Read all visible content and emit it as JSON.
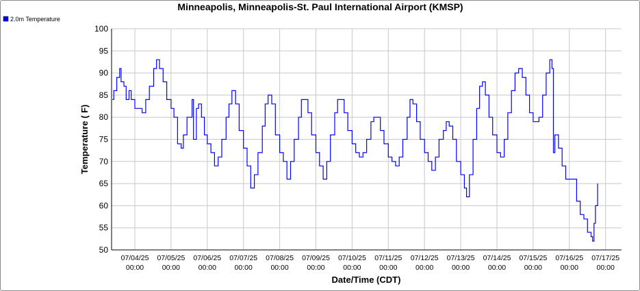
{
  "chart_data": {
    "type": "line",
    "title": "Minneapolis, Minneapolis-St. Paul International Airport (KMSP)",
    "xlabel": "Date/Time (CDT)",
    "ylabel": "Temperature ( F)",
    "ylim": [
      50,
      100
    ],
    "y_ticks": [
      "100",
      "95",
      "90",
      "85",
      "80",
      "75",
      "70",
      "65",
      "60",
      "55",
      "50"
    ],
    "x_tick_labels": [
      {
        "date": "07/04/25",
        "time": "00:00"
      },
      {
        "date": "07/05/25",
        "time": "00:00"
      },
      {
        "date": "07/06/25",
        "time": "00:00"
      },
      {
        "date": "07/07/25",
        "time": "00:00"
      },
      {
        "date": "07/08/25",
        "time": "00:00"
      },
      {
        "date": "07/09/25",
        "time": "00:00"
      },
      {
        "date": "07/10/25",
        "time": "00:00"
      },
      {
        "date": "07/11/25",
        "time": "00:00"
      },
      {
        "date": "07/12/25",
        "time": "00:00"
      },
      {
        "date": "07/13/25",
        "time": "00:00"
      },
      {
        "date": "07/14/25",
        "time": "00:00"
      },
      {
        "date": "07/15/25",
        "time": "00:00"
      },
      {
        "date": "07/16/25",
        "time": "00:00"
      },
      {
        "date": "07/17/25",
        "time": "00:00"
      }
    ],
    "grid": true,
    "legend_position": "top-left",
    "series": [
      {
        "name": "2.0m Temperature",
        "color": "#0000ff",
        "x_unit": "day offset from 07/04/25 00:00 CDT",
        "points": [
          [
            -0.62,
            84
          ],
          [
            -0.58,
            86
          ],
          [
            -0.5,
            89
          ],
          [
            -0.42,
            91
          ],
          [
            -0.38,
            88
          ],
          [
            -0.3,
            87
          ],
          [
            -0.24,
            84
          ],
          [
            -0.16,
            86
          ],
          [
            -0.1,
            84
          ],
          [
            0.0,
            82
          ],
          [
            0.1,
            82
          ],
          [
            0.2,
            81
          ],
          [
            0.3,
            84
          ],
          [
            0.4,
            87
          ],
          [
            0.52,
            91
          ],
          [
            0.6,
            93
          ],
          [
            0.68,
            91
          ],
          [
            0.78,
            88
          ],
          [
            0.88,
            84
          ],
          [
            1.0,
            82
          ],
          [
            1.08,
            80
          ],
          [
            1.18,
            74
          ],
          [
            1.28,
            73
          ],
          [
            1.34,
            76
          ],
          [
            1.44,
            80
          ],
          [
            1.58,
            84
          ],
          [
            1.62,
            75
          ],
          [
            1.7,
            82
          ],
          [
            1.76,
            83
          ],
          [
            1.84,
            80
          ],
          [
            1.92,
            76
          ],
          [
            2.0,
            74
          ],
          [
            2.1,
            72
          ],
          [
            2.2,
            69
          ],
          [
            2.3,
            71
          ],
          [
            2.4,
            75
          ],
          [
            2.52,
            80
          ],
          [
            2.6,
            83
          ],
          [
            2.68,
            86
          ],
          [
            2.78,
            83
          ],
          [
            2.88,
            77
          ],
          [
            3.0,
            73
          ],
          [
            3.1,
            69
          ],
          [
            3.2,
            64
          ],
          [
            3.3,
            67
          ],
          [
            3.4,
            72
          ],
          [
            3.52,
            78
          ],
          [
            3.6,
            83
          ],
          [
            3.68,
            85
          ],
          [
            3.78,
            83
          ],
          [
            3.88,
            76
          ],
          [
            4.0,
            72
          ],
          [
            4.1,
            70
          ],
          [
            4.2,
            66
          ],
          [
            4.3,
            70
          ],
          [
            4.4,
            75
          ],
          [
            4.52,
            80
          ],
          [
            4.6,
            84
          ],
          [
            4.68,
            84
          ],
          [
            4.78,
            81
          ],
          [
            4.88,
            76
          ],
          [
            5.0,
            72
          ],
          [
            5.1,
            69
          ],
          [
            5.2,
            66
          ],
          [
            5.3,
            70
          ],
          [
            5.4,
            76
          ],
          [
            5.52,
            81
          ],
          [
            5.6,
            84
          ],
          [
            5.68,
            84
          ],
          [
            5.78,
            81
          ],
          [
            5.88,
            77
          ],
          [
            6.0,
            74
          ],
          [
            6.1,
            72
          ],
          [
            6.2,
            71
          ],
          [
            6.3,
            72
          ],
          [
            6.4,
            75
          ],
          [
            6.52,
            79
          ],
          [
            6.6,
            80
          ],
          [
            6.68,
            80
          ],
          [
            6.78,
            77
          ],
          [
            6.88,
            74
          ],
          [
            7.0,
            71
          ],
          [
            7.1,
            70
          ],
          [
            7.2,
            69
          ],
          [
            7.3,
            71
          ],
          [
            7.4,
            75
          ],
          [
            7.52,
            80
          ],
          [
            7.6,
            84
          ],
          [
            7.68,
            83
          ],
          [
            7.78,
            79
          ],
          [
            7.88,
            75
          ],
          [
            8.0,
            72
          ],
          [
            8.1,
            70
          ],
          [
            8.2,
            68
          ],
          [
            8.3,
            71
          ],
          [
            8.4,
            75
          ],
          [
            8.52,
            77
          ],
          [
            8.6,
            79
          ],
          [
            8.68,
            78
          ],
          [
            8.78,
            75
          ],
          [
            8.88,
            70
          ],
          [
            9.0,
            67
          ],
          [
            9.1,
            64
          ],
          [
            9.16,
            62
          ],
          [
            9.24,
            67
          ],
          [
            9.34,
            75
          ],
          [
            9.44,
            82
          ],
          [
            9.52,
            87
          ],
          [
            9.6,
            88
          ],
          [
            9.68,
            85
          ],
          [
            9.78,
            80
          ],
          [
            9.88,
            76
          ],
          [
            10.0,
            72
          ],
          [
            10.1,
            71
          ],
          [
            10.2,
            75
          ],
          [
            10.3,
            81
          ],
          [
            10.4,
            86
          ],
          [
            10.5,
            90
          ],
          [
            10.6,
            91
          ],
          [
            10.7,
            89
          ],
          [
            10.8,
            85
          ],
          [
            10.9,
            81
          ],
          [
            11.0,
            79
          ],
          [
            11.1,
            79
          ],
          [
            11.16,
            80
          ],
          [
            11.26,
            85
          ],
          [
            11.36,
            90
          ],
          [
            11.46,
            93
          ],
          [
            11.52,
            91
          ],
          [
            11.56,
            72
          ],
          [
            11.6,
            76
          ],
          [
            11.7,
            73
          ],
          [
            11.8,
            69
          ],
          [
            11.9,
            66
          ],
          [
            12.0,
            66
          ],
          [
            12.1,
            66
          ],
          [
            12.2,
            61
          ],
          [
            12.3,
            58
          ],
          [
            12.4,
            57
          ],
          [
            12.5,
            54
          ],
          [
            12.6,
            53
          ],
          [
            12.64,
            52
          ],
          [
            12.68,
            56
          ],
          [
            12.72,
            60
          ],
          [
            12.78,
            65
          ]
        ]
      }
    ]
  }
}
